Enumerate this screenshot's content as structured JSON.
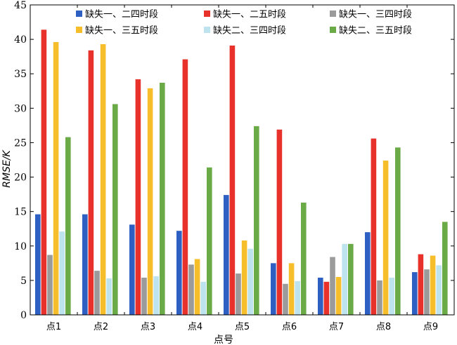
{
  "chart_data": {
    "type": "bar",
    "title": "",
    "xlabel": "点号",
    "ylabel": "RMSE/K",
    "ylim": [
      0,
      45
    ],
    "yticks": [
      0,
      5,
      10,
      15,
      20,
      25,
      30,
      35,
      40,
      45
    ],
    "categories": [
      "点1",
      "点2",
      "点3",
      "点4",
      "点5",
      "点6",
      "点7",
      "点8",
      "点9"
    ],
    "legend_position": "top",
    "series": [
      {
        "name": "缺失一、二四时段",
        "color": "#2e5fc2",
        "values": [
          14.6,
          14.6,
          13.1,
          12.2,
          17.4,
          7.5,
          5.4,
          12.0,
          6.2
        ]
      },
      {
        "name": "缺失一、二五时段",
        "color": "#e8312a",
        "values": [
          41.4,
          38.4,
          34.2,
          37.1,
          39.1,
          26.9,
          4.8,
          25.6,
          8.8
        ]
      },
      {
        "name": "缺失一、三四时段",
        "color": "#9b9b9b",
        "values": [
          8.7,
          6.4,
          5.4,
          7.3,
          6.0,
          4.5,
          8.4,
          5.0,
          6.6
        ]
      },
      {
        "name": "缺失一、三五时段",
        "color": "#f7be2c",
        "values": [
          39.6,
          39.3,
          32.9,
          8.1,
          10.8,
          7.5,
          5.5,
          22.4,
          8.6
        ]
      },
      {
        "name": "缺失二、三四时段",
        "color": "#bde3ef",
        "values": [
          12.1,
          5.3,
          5.6,
          4.8,
          9.6,
          4.9,
          10.3,
          5.4,
          7.2
        ]
      },
      {
        "name": "缺失二、三五时段",
        "color": "#6aab48",
        "values": [
          25.8,
          30.6,
          33.7,
          21.4,
          27.4,
          16.3,
          10.3,
          24.3,
          13.5
        ]
      }
    ]
  }
}
